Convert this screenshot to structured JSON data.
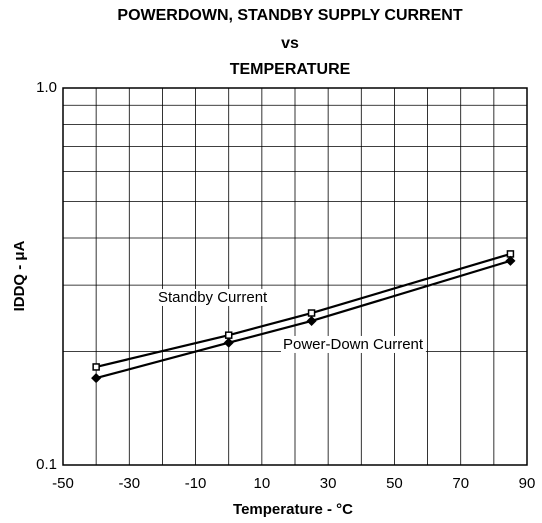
{
  "chart_data": {
    "type": "line",
    "title": [
      "POWERDOWN, STANDBY SUPPLY CURRENT",
      "vs",
      "TEMPERATURE"
    ],
    "x_label": "Temperature - °C",
    "y_label": "IDDQ - μA",
    "x": [
      -40,
      0,
      25,
      85
    ],
    "series": [
      {
        "name": "Standby Current",
        "color": "#000000",
        "marker": "square",
        "values": [
          0.182,
          0.221,
          0.253,
          0.363
        ]
      },
      {
        "name": "Power-Down Current",
        "color": "#000000",
        "marker": "diamond",
        "values": [
          0.17,
          0.211,
          0.241,
          0.348
        ]
      }
    ],
    "xlim": [
      -50,
      90
    ],
    "xticks": [
      -50,
      -30,
      -10,
      10,
      30,
      50,
      70,
      90
    ],
    "xminor_ticks": [
      -40,
      -20,
      0,
      20,
      40,
      60,
      80
    ],
    "ylim": [
      0.1,
      1
    ],
    "yticks": [
      0.1,
      {
        "value": 1,
        "label": "1.0"
      }
    ],
    "yminor_ticks": [
      0.2,
      0.3,
      0.4,
      0.5,
      0.6,
      0.7,
      0.8,
      0.9
    ],
    "y_log": true,
    "grid": true
  }
}
